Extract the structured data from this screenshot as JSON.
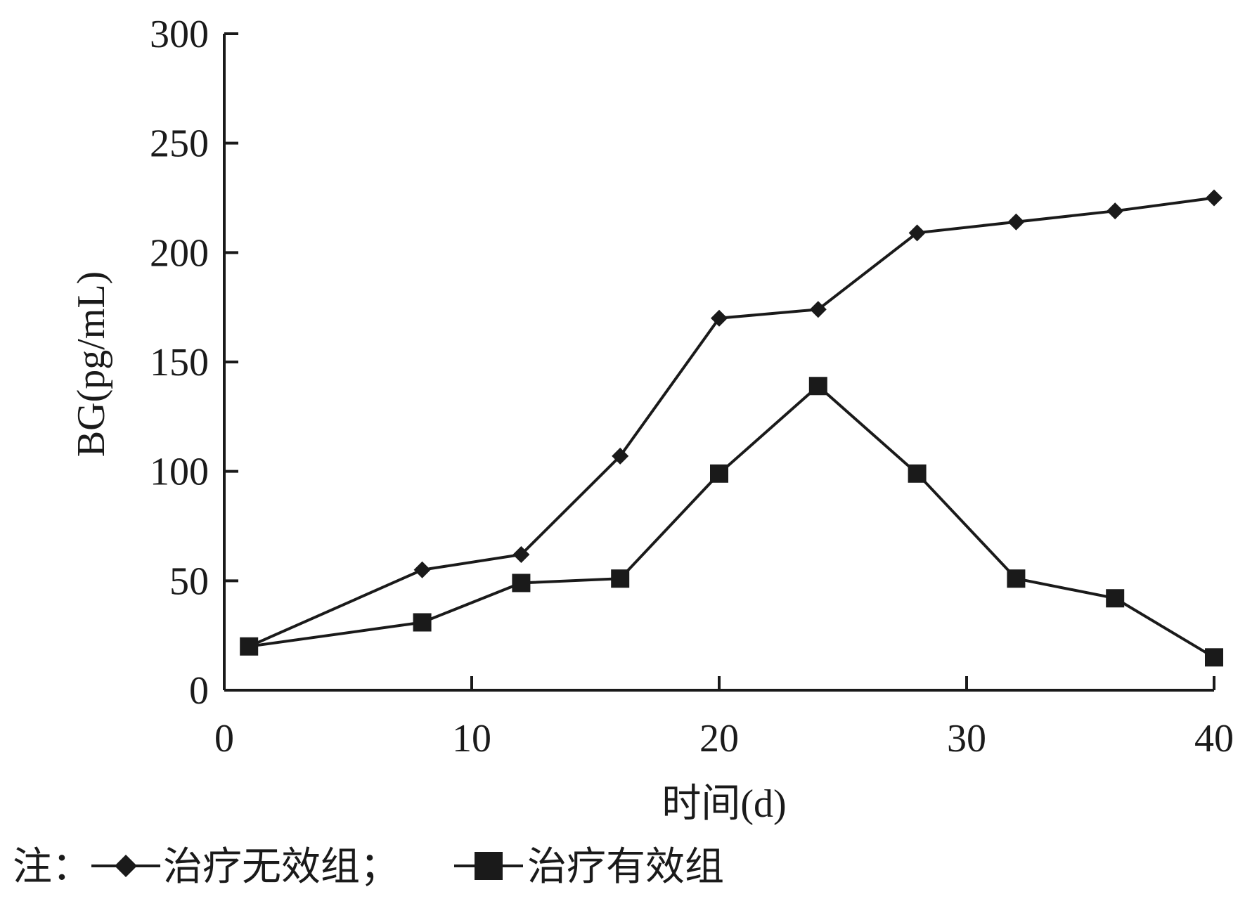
{
  "chart_data": {
    "type": "line",
    "title": "",
    "xlabel": "时间(d)",
    "ylabel": "BG(pg/mL)",
    "xlim": [
      0,
      40
    ],
    "ylim": [
      0,
      300
    ],
    "x_ticks": [
      0,
      10,
      20,
      30,
      40
    ],
    "y_ticks": [
      0,
      50,
      100,
      150,
      200,
      250,
      300
    ],
    "grid": false,
    "legend_position": "bottom-left",
    "legend_prefix": "注：",
    "series": [
      {
        "name": "治疗无效组",
        "marker": "diamond",
        "color": "#1a1a1a",
        "legend_label": "治疗无效组；",
        "x": [
          1,
          8,
          12,
          16,
          20,
          24,
          28,
          32,
          36,
          40
        ],
        "y": [
          20,
          55,
          62,
          107,
          170,
          174,
          209,
          214,
          219,
          225
        ]
      },
      {
        "name": "治疗有效组",
        "marker": "square",
        "color": "#1a1a1a",
        "legend_label": "治疗有效组",
        "x": [
          1,
          8,
          12,
          16,
          20,
          24,
          28,
          32,
          36,
          40
        ],
        "y": [
          20,
          31,
          49,
          51,
          99,
          139,
          99,
          51,
          42,
          15
        ]
      }
    ]
  }
}
